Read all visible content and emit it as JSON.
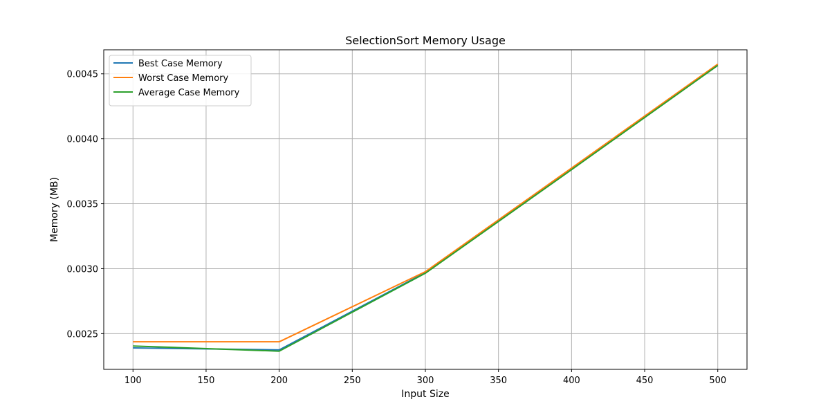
{
  "chart_data": {
    "type": "line",
    "title": "SelectionSort Memory Usage",
    "xlabel": "Input Size",
    "ylabel": "Memory (MB)",
    "x": [
      100,
      200,
      300,
      400,
      500
    ],
    "series": [
      {
        "name": "Best Case Memory",
        "color": "#1f77b4",
        "values": [
          0.00239,
          0.002375,
          0.00297,
          0.003765,
          0.004565
        ]
      },
      {
        "name": "Worst Case Memory",
        "color": "#ff7f0e",
        "values": [
          0.002437,
          0.002437,
          0.002977,
          0.003775,
          0.004575
        ]
      },
      {
        "name": "Average Case Memory",
        "color": "#2ca02c",
        "values": [
          0.002405,
          0.002365,
          0.002965,
          0.003762,
          0.004565
        ]
      }
    ],
    "xlim": [
      80,
      520
    ],
    "ylim": [
      0.002225,
      0.004685
    ],
    "x_ticks": [
      100,
      150,
      200,
      250,
      300,
      350,
      400,
      450,
      500
    ],
    "x_tick_labels": [
      "100",
      "150",
      "200",
      "250",
      "300",
      "350",
      "400",
      "450",
      "500"
    ],
    "y_ticks": [
      0.0025,
      0.003,
      0.0035,
      0.004,
      0.0045
    ],
    "y_tick_labels": [
      "0.0025",
      "0.0030",
      "0.0035",
      "0.0040",
      "0.0045"
    ],
    "grid": true,
    "legend_position": "top-left"
  }
}
